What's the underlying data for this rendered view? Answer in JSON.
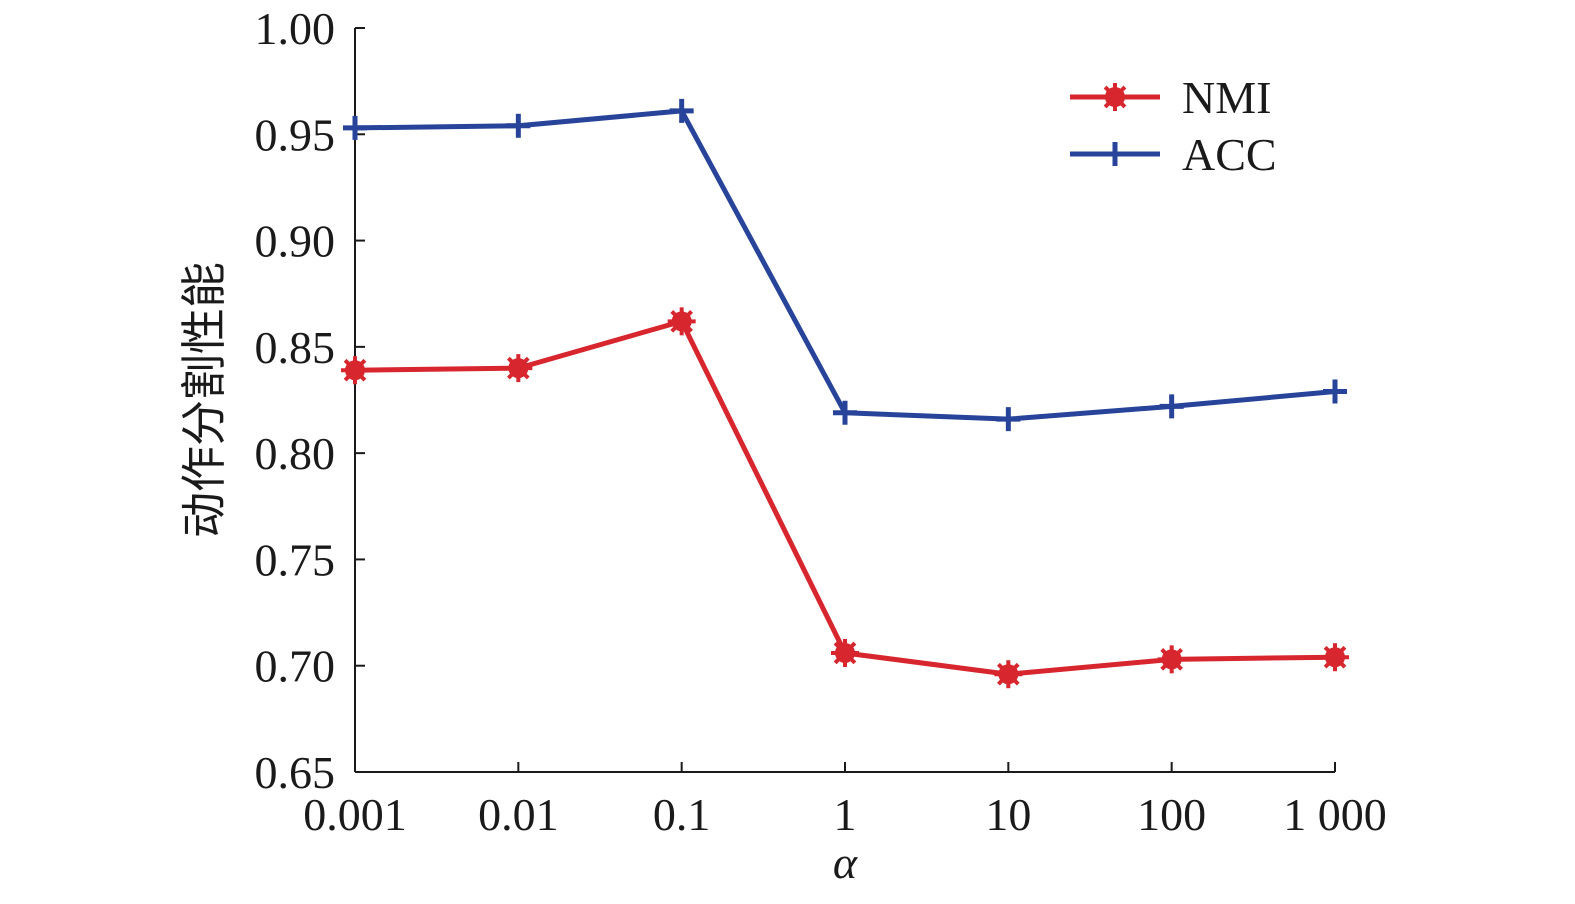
{
  "chart_data": {
    "type": "line",
    "title": "",
    "xlabel": "α",
    "ylabel": "动作分割性能",
    "categories": [
      "0.001",
      "0.01",
      "0.1",
      "1",
      "10",
      "100",
      "1 000"
    ],
    "ylim": [
      0.65,
      1.0
    ],
    "yticks": [
      "0.65",
      "0.70",
      "0.75",
      "0.80",
      "0.85",
      "0.90",
      "0.95",
      "1.00"
    ],
    "grid": false,
    "legend_position": "top-right",
    "series": [
      {
        "name": "NMI",
        "color": "#d8262e",
        "marker": "asterisk",
        "values": [
          0.839,
          0.84,
          0.862,
          0.706,
          0.696,
          0.703,
          0.704
        ]
      },
      {
        "name": "ACC",
        "color": "#27449a",
        "marker": "plus",
        "values": [
          0.953,
          0.954,
          0.961,
          0.819,
          0.816,
          0.822,
          0.829
        ]
      }
    ]
  }
}
